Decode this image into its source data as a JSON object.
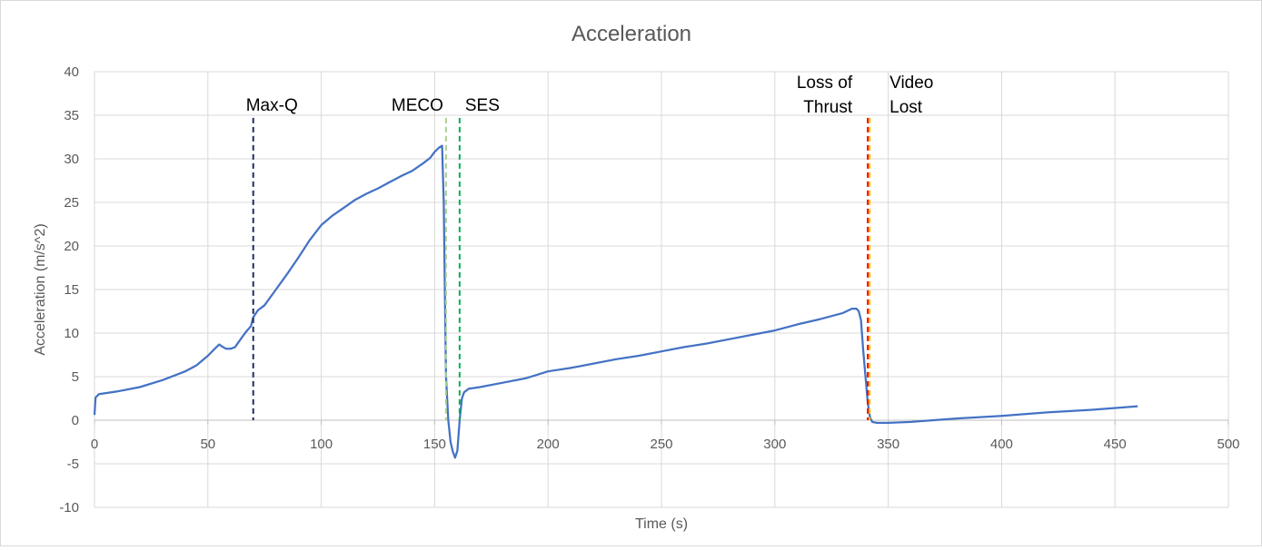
{
  "chart_data": {
    "type": "line",
    "title": "Acceleration",
    "xlabel": "Time (s)",
    "ylabel": "Acceleration (m/s^2)",
    "xlim": [
      0,
      500
    ],
    "ylim": [
      -10,
      40
    ],
    "xticks": [
      0,
      50,
      100,
      150,
      200,
      250,
      300,
      350,
      400,
      450,
      500
    ],
    "yticks": [
      -10,
      -5,
      0,
      5,
      10,
      15,
      20,
      25,
      30,
      35,
      40
    ],
    "grid": true,
    "legend": "none",
    "colors": {
      "series": "#4472c4",
      "grid": "#d9d9d9",
      "maxq": "#1f2d5c",
      "meco": "#a9d18e",
      "ses": "#00b050",
      "loss_of_thrust": "#ff0000",
      "video_lost": "#ffc000"
    },
    "annotations": [
      {
        "lines": [
          "Max-Q"
        ],
        "x": 70,
        "color": "#1f2d5c"
      },
      {
        "lines": [
          "MECO"
        ],
        "x": 155,
        "color": "#a9d18e"
      },
      {
        "lines": [
          "SES"
        ],
        "x": 161,
        "color": "#00b050"
      },
      {
        "lines": [
          "Loss of",
          "Thrust"
        ],
        "x": 341,
        "color": "#ff0000"
      },
      {
        "lines": [
          "Video",
          "Lost"
        ],
        "x": 341.8,
        "color": "#ffc000"
      }
    ],
    "series": [
      {
        "points": [
          [
            0,
            0.6
          ],
          [
            0.5,
            2.6
          ],
          [
            2,
            3.0
          ],
          [
            10,
            3.3
          ],
          [
            20,
            3.8
          ],
          [
            30,
            4.6
          ],
          [
            40,
            5.6
          ],
          [
            45,
            6.3
          ],
          [
            50,
            7.4
          ],
          [
            53,
            8.2
          ],
          [
            55,
            8.7
          ],
          [
            56,
            8.5
          ],
          [
            58,
            8.2
          ],
          [
            60,
            8.2
          ],
          [
            62,
            8.4
          ],
          [
            65,
            9.5
          ],
          [
            67,
            10.2
          ],
          [
            69,
            10.8
          ],
          [
            70,
            11.8
          ],
          [
            72,
            12.6
          ],
          [
            75,
            13.2
          ],
          [
            80,
            15.0
          ],
          [
            85,
            16.8
          ],
          [
            90,
            18.7
          ],
          [
            95,
            20.7
          ],
          [
            100,
            22.4
          ],
          [
            105,
            23.5
          ],
          [
            110,
            24.4
          ],
          [
            115,
            25.3
          ],
          [
            120,
            26.0
          ],
          [
            125,
            26.6
          ],
          [
            130,
            27.3
          ],
          [
            135,
            28.0
          ],
          [
            140,
            28.6
          ],
          [
            145,
            29.5
          ],
          [
            148,
            30.1
          ],
          [
            150,
            30.8
          ],
          [
            152,
            31.3
          ],
          [
            153.3,
            31.5
          ],
          [
            154,
            25
          ],
          [
            154.5,
            15
          ],
          [
            155,
            5
          ],
          [
            156,
            0
          ],
          [
            157,
            -2.5
          ],
          [
            158,
            -3.6
          ],
          [
            159,
            -4.3
          ],
          [
            160,
            -3.5
          ],
          [
            161,
            0
          ],
          [
            162,
            2.5
          ],
          [
            163,
            3.2
          ],
          [
            165,
            3.6
          ],
          [
            170,
            3.8
          ],
          [
            180,
            4.3
          ],
          [
            190,
            4.8
          ],
          [
            200,
            5.6
          ],
          [
            210,
            6.0
          ],
          [
            220,
            6.5
          ],
          [
            230,
            7.0
          ],
          [
            240,
            7.4
          ],
          [
            250,
            7.9
          ],
          [
            260,
            8.4
          ],
          [
            270,
            8.8
          ],
          [
            280,
            9.3
          ],
          [
            290,
            9.8
          ],
          [
            300,
            10.3
          ],
          [
            310,
            11.0
          ],
          [
            320,
            11.6
          ],
          [
            330,
            12.3
          ],
          [
            334,
            12.8
          ],
          [
            336,
            12.8
          ],
          [
            337,
            12.5
          ],
          [
            338,
            11.5
          ],
          [
            339,
            8.0
          ],
          [
            340,
            5.0
          ],
          [
            341,
            2.0
          ],
          [
            342,
            0.3
          ],
          [
            343,
            -0.2
          ],
          [
            345,
            -0.3
          ],
          [
            350,
            -0.3
          ],
          [
            360,
            -0.2
          ],
          [
            370,
            0.0
          ],
          [
            380,
            0.2
          ],
          [
            400,
            0.5
          ],
          [
            420,
            0.9
          ],
          [
            440,
            1.2
          ],
          [
            460,
            1.6
          ]
        ]
      }
    ]
  }
}
